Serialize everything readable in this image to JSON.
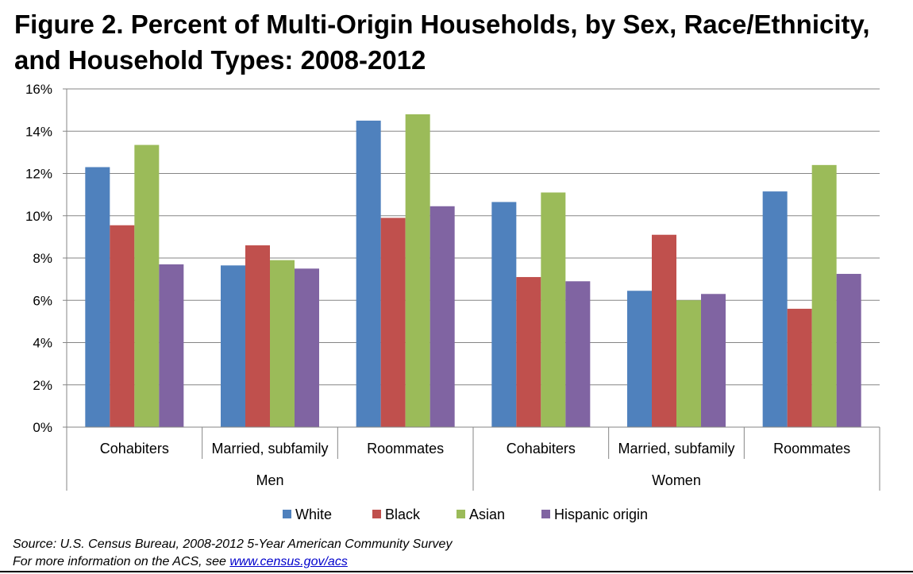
{
  "chart_data": {
    "type": "bar",
    "title": "Figure 2. Percent of Multi-Origin Households, by Sex, Race/Ethnicity, and Household Types: 2008-2012",
    "groups": [
      "Men",
      "Women"
    ],
    "categories": [
      "Cohabiters",
      "Married, subfamily",
      "Roommates",
      "Cohabiters",
      "Married, subfamily",
      "Roommates"
    ],
    "category_group": [
      0,
      0,
      0,
      1,
      1,
      1
    ],
    "series": [
      {
        "name": "White",
        "color": "#4F81BD",
        "values": [
          12.3,
          7.65,
          14.5,
          10.65,
          6.45,
          11.15
        ]
      },
      {
        "name": "Black",
        "color": "#C0504D",
        "values": [
          9.55,
          8.6,
          9.9,
          7.1,
          9.1,
          5.6
        ]
      },
      {
        "name": "Asian",
        "color": "#9BBB59",
        "values": [
          13.35,
          7.9,
          14.8,
          11.1,
          6.0,
          12.4
        ]
      },
      {
        "name": "Hispanic origin",
        "color": "#8064A2",
        "values": [
          7.7,
          7.5,
          10.45,
          6.9,
          6.3,
          7.25
        ]
      }
    ],
    "ylim": [
      0,
      16
    ],
    "y_ticks": [
      0,
      2,
      4,
      6,
      8,
      10,
      12,
      14,
      16
    ],
    "y_tick_labels": [
      "0%",
      "2%",
      "4%",
      "6%",
      "8%",
      "10%",
      "12%",
      "14%",
      "16%"
    ],
    "xlabel": "",
    "ylabel": "",
    "grid": true,
    "legend_position": "bottom"
  },
  "footer": {
    "source": "Source: U.S. Census Bureau, 2008-2012 5-Year American Community Survey",
    "more_info_prefix": "For more information on the ACS, see ",
    "link_text": "www.census.gov/acs"
  }
}
